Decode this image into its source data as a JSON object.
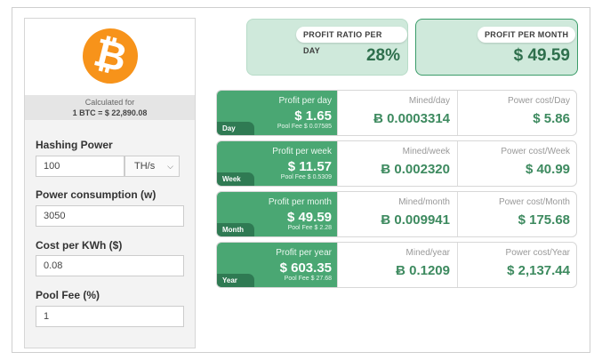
{
  "left": {
    "logo_symbol": "₿",
    "calc_label": "Calculated for",
    "calc_rate": "1 BTC = $ 22,890.08",
    "hashing_power": {
      "label": "Hashing Power",
      "value": "100",
      "unit": "TH/s"
    },
    "power_consumption": {
      "label": "Power consumption (w)",
      "value": "3050"
    },
    "cost_per_kwh": {
      "label": "Cost per KWh ($)",
      "value": "0.08"
    },
    "pool_fee": {
      "label": "Pool Fee (%)",
      "value": "1"
    }
  },
  "summary": {
    "ratio": {
      "label": "PROFIT RATIO PER DAY",
      "value": "28%"
    },
    "month": {
      "label": "PROFIT PER MONTH",
      "value": "$ 49.59"
    }
  },
  "rows": [
    {
      "tag": "Day",
      "profit_label": "Profit per day",
      "profit": "$ 1.65",
      "fee": "Pool Fee $ 0.07585",
      "mined_label": "Mined/day",
      "mined": "Ƀ 0.0003314",
      "power_label": "Power cost/Day",
      "power": "$ 5.86"
    },
    {
      "tag": "Week",
      "profit_label": "Profit per week",
      "profit": "$ 11.57",
      "fee": "Pool Fee $ 0.5309",
      "mined_label": "Mined/week",
      "mined": "Ƀ 0.002320",
      "power_label": "Power cost/Week",
      "power": "$ 40.99"
    },
    {
      "tag": "Month",
      "profit_label": "Profit per month",
      "profit": "$ 49.59",
      "fee": "Pool Fee $ 2.28",
      "mined_label": "Mined/month",
      "mined": "Ƀ 0.009941",
      "power_label": "Power cost/Month",
      "power": "$ 175.68"
    },
    {
      "tag": "Year",
      "profit_label": "Profit per year",
      "profit": "$ 603.35",
      "fee": "Pool Fee $ 27.68",
      "mined_label": "Mined/year",
      "mined": "Ƀ 0.1209",
      "power_label": "Power cost/Year",
      "power": "$ 2,137.44"
    }
  ],
  "colors": {
    "accent": "#4aa773",
    "accent_dark": "#2f7a53",
    "bitcoin": "#f7931a",
    "summary_bg": "#cfe9db"
  }
}
